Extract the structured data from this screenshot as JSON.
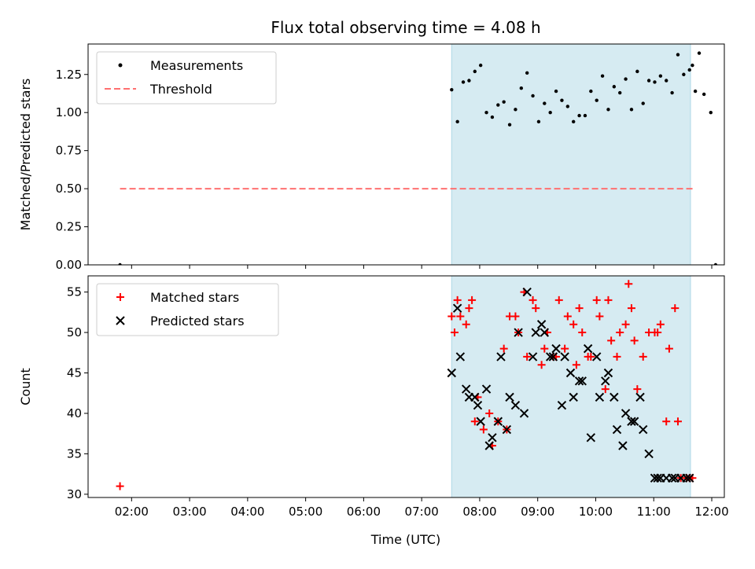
{
  "chart_data": {
    "title": "Flux total observing time = 4.08 h",
    "shaded_region": {
      "x": [
        "07:31",
        "11:38"
      ],
      "color": "#add8e6"
    },
    "xlabel": "Time (UTC)",
    "x_ticks": [
      "02:00",
      "03:00",
      "04:00",
      "05:00",
      "06:00",
      "07:00",
      "08:00",
      "09:00",
      "10:00",
      "11:00",
      "12:00"
    ],
    "xlim": [
      "01:15",
      "12:13"
    ],
    "panels": [
      {
        "type": "scatter",
        "ylabel": "Matched/Predicted stars",
        "ylim": [
          0,
          1.45
        ],
        "y_ticks": [
          "0.00",
          "0.25",
          "0.50",
          "0.75",
          "1.00",
          "1.25"
        ],
        "legend_position": "top-left",
        "series": [
          {
            "name": "Measurements",
            "color": "#000000",
            "marker": "dot",
            "x": [
              "01:48",
              "07:31",
              "07:37",
              "07:43",
              "07:49",
              "07:55",
              "08:01",
              "08:07",
              "08:13",
              "08:19",
              "08:25",
              "08:31",
              "08:37",
              "08:43",
              "08:49",
              "08:55",
              "09:01",
              "09:07",
              "09:13",
              "09:19",
              "09:25",
              "09:31",
              "09:37",
              "09:43",
              "09:49",
              "09:55",
              "10:01",
              "10:07",
              "10:13",
              "10:19",
              "10:25",
              "10:31",
              "10:37",
              "10:43",
              "10:49",
              "10:55",
              "11:01",
              "11:07",
              "11:13",
              "11:19",
              "11:25",
              "11:31",
              "11:37",
              "11:40",
              "11:43",
              "11:47",
              "11:52",
              "11:59",
              "12:04",
              "12:09",
              "12:13"
            ],
            "y": [
              0.0,
              1.15,
              0.94,
              1.2,
              1.21,
              1.27,
              1.31,
              1.0,
              0.97,
              1.05,
              1.07,
              0.92,
              1.02,
              1.16,
              1.26,
              1.11,
              0.94,
              1.06,
              1.0,
              1.14,
              1.08,
              1.04,
              0.94,
              0.98,
              0.98,
              1.14,
              1.08,
              1.24,
              1.02,
              1.17,
              1.13,
              1.22,
              1.02,
              1.27,
              1.06,
              1.21,
              1.2,
              1.24,
              1.21,
              1.13,
              1.38,
              1.25,
              1.28,
              1.31,
              1.14,
              1.39,
              1.12,
              1.0,
              0.0,
              null,
              null
            ]
          },
          {
            "name": "Threshold",
            "color": "#ff7070",
            "style": "dashed",
            "x": [
              "01:48",
              "11:41"
            ],
            "y": [
              0.5,
              0.5
            ]
          }
        ]
      },
      {
        "type": "scatter",
        "ylabel": "Count",
        "ylim": [
          29.6,
          57
        ],
        "y_ticks": [
          "30",
          "35",
          "40",
          "45",
          "50",
          "55"
        ],
        "legend_position": "top-left",
        "series": [
          {
            "name": "Matched stars",
            "color": "#ff0000",
            "marker": "plus",
            "x": [
              "01:48",
              "07:31",
              "07:34",
              "07:37",
              "07:40",
              "07:46",
              "07:49",
              "07:52",
              "07:55",
              "07:58",
              "08:04",
              "08:10",
              "08:13",
              "08:19",
              "08:25",
              "08:28",
              "08:31",
              "08:37",
              "08:40",
              "08:46",
              "08:49",
              "08:55",
              "08:58",
              "09:04",
              "09:07",
              "09:10",
              "09:16",
              "09:19",
              "09:22",
              "09:28",
              "09:31",
              "09:37",
              "09:40",
              "09:43",
              "09:46",
              "09:52",
              "09:55",
              "10:01",
              "10:04",
              "10:10",
              "10:13",
              "10:16",
              "10:22",
              "10:25",
              "10:31",
              "10:34",
              "10:37",
              "10:40",
              "10:43",
              "10:49",
              "10:55",
              "11:01",
              "11:04",
              "11:07",
              "11:13",
              "11:16",
              "11:22",
              "11:25",
              "11:28",
              "11:34",
              "11:37",
              "11:40"
            ],
            "y": [
              31,
              52,
              50,
              54,
              52,
              51,
              53,
              54,
              39,
              42,
              38,
              40,
              36,
              39,
              48,
              38,
              52,
              52,
              50,
              55,
              47,
              54,
              53,
              46,
              48,
              50,
              47,
              47,
              54,
              48,
              52,
              51,
              46,
              53,
              50,
              47,
              47,
              54,
              52,
              43,
              54,
              49,
              47,
              50,
              51,
              56,
              53,
              49,
              43,
              47,
              50,
              50,
              50,
              51,
              39,
              48,
              53,
              39,
              32,
              32,
              32,
              32
            ]
          },
          {
            "name": "Predicted stars",
            "color": "#000000",
            "marker": "x",
            "x": [
              "07:31",
              "07:37",
              "07:40",
              "07:46",
              "07:49",
              "07:55",
              "07:58",
              "08:01",
              "08:07",
              "08:10",
              "08:13",
              "08:19",
              "08:22",
              "08:28",
              "08:31",
              "08:37",
              "08:40",
              "08:46",
              "08:49",
              "08:55",
              "08:58",
              "09:04",
              "09:07",
              "09:13",
              "09:16",
              "09:19",
              "09:25",
              "09:28",
              "09:34",
              "09:37",
              "09:43",
              "09:46",
              "09:52",
              "09:55",
              "10:01",
              "10:04",
              "10:10",
              "10:13",
              "10:19",
              "10:22",
              "10:28",
              "10:31",
              "10:37",
              "10:40",
              "10:46",
              "10:49",
              "10:55",
              "11:01",
              "11:04",
              "11:07",
              "11:13",
              "11:19",
              "11:22",
              "11:28",
              "11:34",
              "11:37"
            ],
            "y": [
              45,
              53,
              47,
              43,
              42,
              42,
              41,
              39,
              43,
              36,
              37,
              39,
              47,
              38,
              42,
              41,
              50,
              40,
              55,
              47,
              50,
              51,
              50,
              47,
              47,
              48,
              41,
              47,
              45,
              42,
              44,
              44,
              48,
              37,
              47,
              42,
              44,
              45,
              42,
              38,
              36,
              40,
              39,
              39,
              42,
              38,
              35,
              32,
              32,
              32,
              32,
              32,
              32,
              32,
              32,
              32
            ]
          }
        ]
      }
    ]
  }
}
